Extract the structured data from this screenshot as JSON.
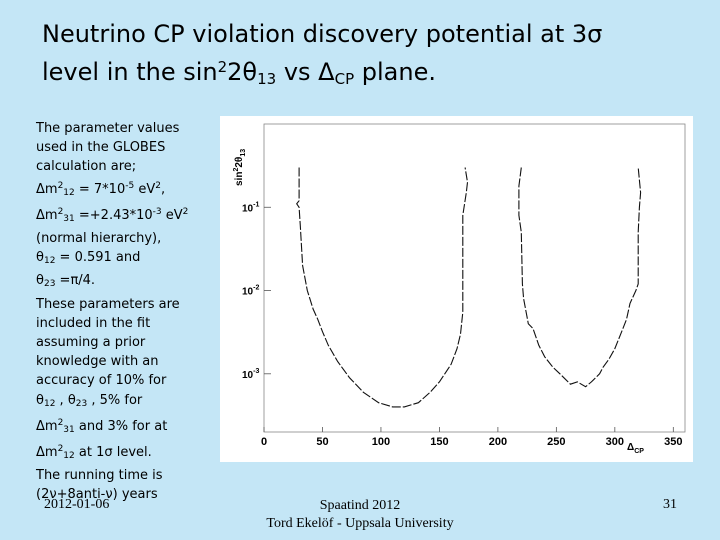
{
  "title": {
    "line1": "Neutrino CP violation discovery potential at 3σ",
    "line2_pre": "level in the sin",
    "line2_sup": "2",
    "line2_mid": "2θ",
    "line2_sub1": "13",
    "line2_vs": " vs Δ",
    "line2_sub2": "CP",
    "line2_post": " plane."
  },
  "side_text": {
    "l1": "The parameter values",
    "l2": "used in the GLOBES",
    "l3": "calculation are;",
    "l4": {
      "a": "Δm",
      "sup1": "2",
      "sub1": "12",
      "b": " = 7*10",
      "sup2": "-5",
      "c": " eV",
      "sup3": "2",
      "d": ","
    },
    "l5": {
      "a": "Δm",
      "sup1": "2",
      "sub1": "31",
      "b": " =+2.43*10",
      "sup2": "-3",
      "c": " eV",
      "sup3": "2"
    },
    "l6": "(normal hierarchy),",
    "l7": {
      "a": "θ",
      "sub1": "12",
      "b": " = 0.591 and"
    },
    "l8": {
      "a": " θ",
      "sub1": "23",
      "b": " =π/4."
    },
    "l9": "These parameters are",
    "l10": "included in the fit",
    "l11": "assuming a prior",
    "l12": "knowledge with an",
    "l13": "accuracy of 10% for",
    "l14": {
      "a": "θ",
      "sub1": "12",
      "b": " , θ",
      "sub2": "23",
      "c": " , 5% for"
    },
    "l15": {
      "a": "Δm",
      "sup1": "2",
      "sub1": "31",
      "b": " and 3% for at"
    },
    "l16": {
      "a": "Δm",
      "sup1": "2",
      "sub1": "12",
      "b": " at 1σ  level."
    },
    "l17": "The running time is",
    "l18": "(2ν+8anti-ν) years"
  },
  "chart_data": {
    "type": "line",
    "xlabel": "Δ",
    "xlabel_sub": "CP",
    "ylabel": "sin",
    "ylabel_sup": "2",
    "ylabel_mid": "2θ",
    "ylabel_sub": "13",
    "xlim": [
      0,
      360
    ],
    "ylim": [
      0.0002,
      1
    ],
    "yscale": "log",
    "x_ticks": [
      0,
      50,
      100,
      150,
      200,
      250,
      300,
      350
    ],
    "y_ticks": [
      {
        "value": 0.1,
        "base": "10",
        "exp": "-1"
      },
      {
        "value": 0.01,
        "base": "10",
        "exp": "-2"
      },
      {
        "value": 0.001,
        "base": "10",
        "exp": "-3"
      }
    ],
    "curves": [
      {
        "points": [
          [
            30,
            0.3
          ],
          [
            30,
            0.12
          ],
          [
            28,
            0.11
          ],
          [
            30,
            0.1
          ],
          [
            31,
            0.06
          ],
          [
            33,
            0.02
          ],
          [
            37,
            0.01
          ],
          [
            42,
            0.006
          ],
          [
            46,
            0.0045
          ],
          [
            50,
            0.0032
          ],
          [
            55,
            0.0022
          ],
          [
            63,
            0.0014
          ],
          [
            73,
            0.0009
          ],
          [
            85,
            0.0006
          ],
          [
            98,
            0.00045
          ],
          [
            110,
            0.0004
          ],
          [
            120,
            0.0004
          ],
          [
            132,
            0.00045
          ],
          [
            142,
            0.0006
          ],
          [
            150,
            0.0008
          ],
          [
            160,
            0.0013
          ],
          [
            165,
            0.002
          ],
          [
            168,
            0.003
          ],
          [
            170,
            0.0055
          ],
          [
            170,
            0.03
          ],
          [
            170,
            0.08
          ],
          [
            173,
            0.15
          ],
          [
            174,
            0.2
          ],
          [
            172,
            0.3
          ]
        ]
      },
      {
        "points": [
          [
            220,
            0.3
          ],
          [
            218,
            0.18
          ],
          [
            218,
            0.08
          ],
          [
            220,
            0.05
          ],
          [
            221,
            0.012
          ],
          [
            222,
            0.008
          ],
          [
            226,
            0.004
          ],
          [
            230,
            0.0035
          ],
          [
            235,
            0.0022
          ],
          [
            240,
            0.0016
          ],
          [
            247,
            0.0012
          ],
          [
            253,
            0.001
          ],
          [
            262,
            0.00075
          ],
          [
            268,
            0.0008
          ],
          [
            275,
            0.0007
          ],
          [
            280,
            0.0008
          ],
          [
            287,
            0.001
          ],
          [
            290,
            0.0012
          ],
          [
            295,
            0.0015
          ],
          [
            300,
            0.002
          ],
          [
            305,
            0.003
          ],
          [
            310,
            0.0045
          ],
          [
            313,
            0.007
          ],
          [
            318,
            0.01
          ],
          [
            320,
            0.012
          ],
          [
            320,
            0.05
          ],
          [
            321,
            0.1
          ],
          [
            322,
            0.15
          ],
          [
            320,
            0.3
          ]
        ]
      }
    ]
  },
  "footer": {
    "date": "2012-01-06",
    "event": "Spaatind 2012",
    "author": "Tord Ekelöf - Uppsala University",
    "page": "31"
  }
}
